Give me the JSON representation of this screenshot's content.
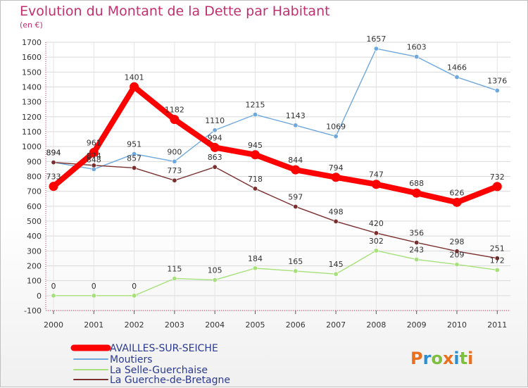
{
  "header": {
    "title": "Evolution du Montant de la Dette par Habitant",
    "subtitle": "(en €)"
  },
  "brand": {
    "logo_text": "Proxiti",
    "letter_colors": [
      "#e8701e",
      "#2a8fd0",
      "#7fbf3f",
      "#e8701e",
      "#2a8fd0",
      "#7fbf3f",
      "#e8701e"
    ]
  },
  "chart_data": {
    "type": "line",
    "title": "Evolution du Montant de la Dette par Habitant",
    "subtitle": "(en €)",
    "xlabel": "",
    "ylabel": "",
    "categories": [
      "2000",
      "2001",
      "2002",
      "2003",
      "2004",
      "2005",
      "2006",
      "2007",
      "2008",
      "2009",
      "2010",
      "2011"
    ],
    "ylim": [
      -100,
      1700
    ],
    "yticks": [
      -100,
      0,
      100,
      200,
      300,
      400,
      500,
      600,
      700,
      800,
      900,
      1000,
      1100,
      1200,
      1300,
      1400,
      1500,
      1600,
      1700
    ],
    "grid": true,
    "legend_position": "bottom-left",
    "series": [
      {
        "name": "AVAILLES-SUR-SEICHE",
        "color": "#ff0000",
        "emphasis": true,
        "values": [
          733,
          961,
          1401,
          1182,
          994,
          945,
          844,
          794,
          747,
          688,
          626,
          732
        ]
      },
      {
        "name": "Moutiers",
        "color": "#6fa8dc",
        "values": [
          894,
          848,
          951,
          900,
          1110,
          1215,
          1143,
          1069,
          1657,
          1603,
          1466,
          1376
        ]
      },
      {
        "name": "La Selle-Guerchaise",
        "color": "#a6e07a",
        "values": [
          0,
          0,
          0,
          115,
          105,
          184,
          165,
          145,
          302,
          243,
          209,
          172
        ]
      },
      {
        "name": "La Guerche-de-Bretagne",
        "color": "#7a2e2e",
        "values": [
          894,
          874,
          857,
          773,
          863,
          718,
          597,
          498,
          420,
          356,
          298,
          251
        ]
      }
    ]
  }
}
